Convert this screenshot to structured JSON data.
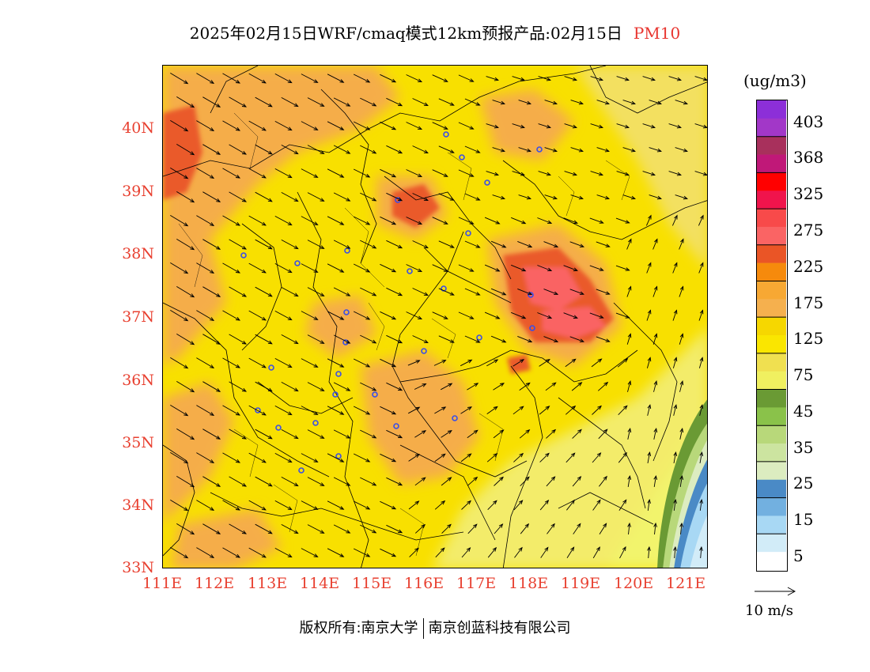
{
  "title": {
    "main": "2025年02月15日WRF/cmaq模式12km预报产品:02月15日",
    "pollutant": "PM10"
  },
  "latitude_labels": [
    "40N",
    "39N",
    "38N",
    "37N",
    "36N",
    "35N",
    "34N",
    "33N"
  ],
  "longitude_labels": [
    "111E",
    "112E",
    "113E",
    "114E",
    "115E",
    "116E",
    "117E",
    "118E",
    "119E",
    "120E",
    "121E"
  ],
  "legend": {
    "unit": "(ug/m3)",
    "labels": [
      "403",
      "368",
      "325",
      "275",
      "225",
      "175",
      "125",
      "75",
      "45",
      "35",
      "25",
      "15",
      "5"
    ],
    "colors": [
      "#8c2fd8",
      "#a237c8",
      "#a8305c",
      "#c01878",
      "#ff0000",
      "#f0144c",
      "#f84a4a",
      "#fa6464",
      "#ea5526",
      "#f68a0c",
      "#f7a833",
      "#f5b04e",
      "#f6d700",
      "#fae600",
      "#f0e050",
      "#f0f060",
      "#6a9a34",
      "#8ac24a",
      "#b8d87a",
      "#cce4a0",
      "#dcecc0",
      "#4a8ac6",
      "#72b0e0",
      "#a8d8f4",
      "#d2ecf8",
      "#ffffff"
    ]
  },
  "wind_vector": {
    "label": "10 m/s"
  },
  "copyright": {
    "prefix": "版权所有:南京大学",
    "company": "南京创蓝科技有限公司"
  }
}
